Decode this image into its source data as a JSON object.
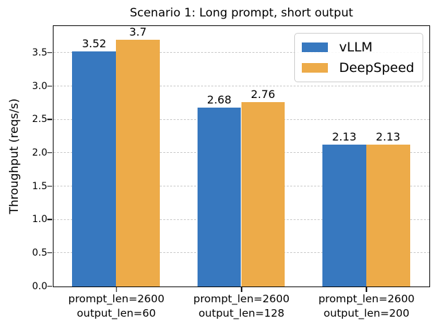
{
  "chart_data": {
    "type": "bar",
    "title": "Scenario 1: Long prompt, short output",
    "xlabel": "",
    "ylabel": "Throughput (reqs/s)",
    "categories": [
      [
        "prompt_len=2600",
        "output_len=60"
      ],
      [
        "prompt_len=2600",
        "output_len=128"
      ],
      [
        "prompt_len=2600",
        "output_len=200"
      ]
    ],
    "series": [
      {
        "name": "vLLM",
        "color": "#3778bf",
        "values": [
          3.52,
          2.68,
          2.13
        ],
        "labels": [
          "3.52",
          "2.68",
          "2.13"
        ]
      },
      {
        "name": "DeepSpeed",
        "color": "#edab49",
        "values": [
          3.7,
          2.76,
          2.13
        ],
        "labels": [
          "3.7",
          "2.76",
          "2.13"
        ]
      }
    ],
    "ylim": [
      0,
      3.894
    ],
    "yticks": [
      0.0,
      0.5,
      1.0,
      1.5,
      2.0,
      2.5,
      3.0,
      3.5
    ],
    "ytick_labels": [
      "0.0",
      "0.5",
      "1.0",
      "1.5",
      "2.0",
      "2.5",
      "3.0",
      "3.5"
    ],
    "grid": "horizontal dashed",
    "legend_position": "upper right",
    "bar_width_fraction": 0.35,
    "colors": {
      "grid": "#c9c9c9",
      "axis": "#000000",
      "background": "#ffffff"
    }
  }
}
